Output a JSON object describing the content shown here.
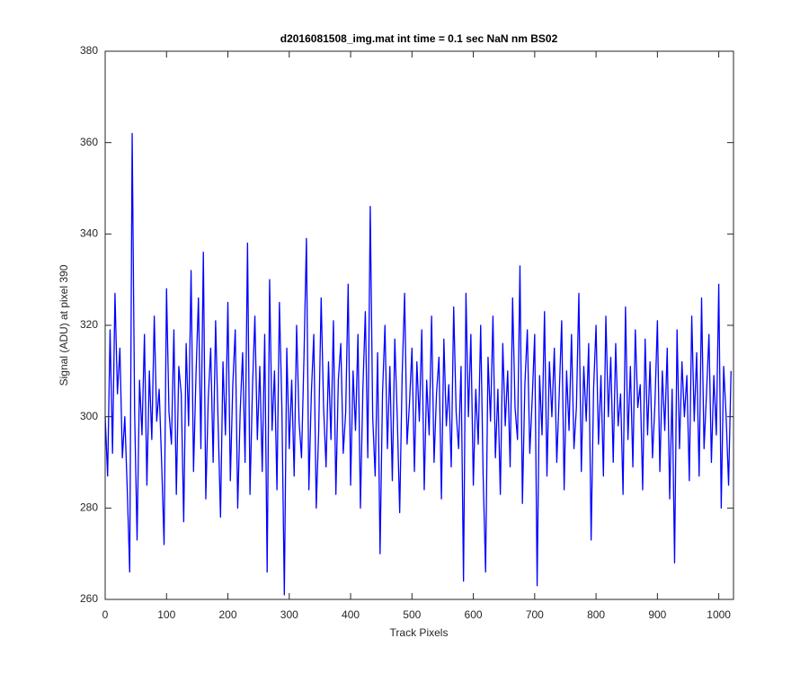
{
  "chart_data": {
    "type": "line",
    "title": "d2016081508_img.mat int time = 0.1 sec  NaN nm BS02",
    "xlabel": "Track Pixels",
    "ylabel": "Signal (ADU) at pixel 390",
    "color": "#0000ff",
    "xlim": [
      0,
      1024
    ],
    "ylim": [
      260,
      380
    ],
    "xticks": [
      0,
      100,
      200,
      300,
      400,
      500,
      600,
      700,
      800,
      900,
      1000
    ],
    "yticks": [
      260,
      280,
      300,
      320,
      340,
      360,
      380
    ],
    "x": [
      0,
      4,
      8,
      12,
      16,
      20,
      24,
      28,
      32,
      36,
      40,
      44,
      48,
      52,
      56,
      60,
      64,
      68,
      72,
      76,
      80,
      84,
      88,
      92,
      96,
      100,
      104,
      108,
      112,
      116,
      120,
      124,
      128,
      132,
      136,
      140,
      144,
      148,
      152,
      156,
      160,
      164,
      168,
      172,
      176,
      180,
      184,
      188,
      192,
      196,
      200,
      204,
      208,
      212,
      216,
      220,
      224,
      228,
      232,
      236,
      240,
      244,
      248,
      252,
      256,
      260,
      264,
      268,
      272,
      276,
      280,
      284,
      288,
      292,
      296,
      300,
      304,
      308,
      312,
      316,
      320,
      324,
      328,
      332,
      336,
      340,
      344,
      348,
      352,
      356,
      360,
      364,
      368,
      372,
      376,
      380,
      384,
      388,
      392,
      396,
      400,
      404,
      408,
      412,
      416,
      420,
      424,
      428,
      432,
      436,
      440,
      444,
      448,
      452,
      456,
      460,
      464,
      468,
      472,
      476,
      480,
      484,
      488,
      492,
      496,
      500,
      504,
      508,
      512,
      516,
      520,
      524,
      528,
      532,
      536,
      540,
      544,
      548,
      552,
      556,
      560,
      564,
      568,
      572,
      576,
      580,
      584,
      588,
      592,
      596,
      600,
      604,
      608,
      612,
      616,
      620,
      624,
      628,
      632,
      636,
      640,
      644,
      648,
      652,
      656,
      660,
      664,
      668,
      672,
      676,
      680,
      684,
      688,
      692,
      696,
      700,
      704,
      708,
      712,
      716,
      720,
      724,
      728,
      732,
      736,
      740,
      744,
      748,
      752,
      756,
      760,
      764,
      768,
      772,
      776,
      780,
      784,
      788,
      792,
      796,
      800,
      804,
      808,
      812,
      816,
      820,
      824,
      828,
      832,
      836,
      840,
      844,
      848,
      852,
      856,
      860,
      864,
      868,
      872,
      876,
      880,
      884,
      888,
      892,
      896,
      900,
      904,
      908,
      912,
      916,
      920,
      924,
      928,
      932,
      936,
      940,
      944,
      948,
      952,
      956,
      960,
      964,
      968,
      972,
      976,
      980,
      984,
      988,
      992,
      996,
      1000,
      1004,
      1008,
      1012,
      1016,
      1020
    ],
    "values": [
      300,
      287,
      319,
      292,
      327,
      305,
      315,
      291,
      300,
      284,
      266,
      362,
      301,
      273,
      308,
      296,
      318,
      285,
      310,
      295,
      322,
      299,
      306,
      290,
      272,
      328,
      301,
      294,
      319,
      283,
      311,
      305,
      277,
      316,
      298,
      332,
      288,
      309,
      326,
      293,
      336,
      282,
      304,
      315,
      290,
      321,
      299,
      278,
      312,
      296,
      325,
      286,
      307,
      319,
      280,
      301,
      314,
      290,
      338,
      283,
      306,
      322,
      295,
      311,
      288,
      318,
      266,
      330,
      297,
      310,
      284,
      325,
      302,
      261,
      315,
      293,
      308,
      287,
      320,
      299,
      291,
      313,
      339,
      284,
      305,
      318,
      280,
      297,
      326,
      302,
      289,
      312,
      295,
      321,
      283,
      308,
      316,
      292,
      301,
      329,
      285,
      310,
      297,
      318,
      280,
      306,
      323,
      291,
      346,
      300,
      287,
      314,
      270,
      305,
      320,
      293,
      311,
      286,
      317,
      300,
      279,
      309,
      327,
      294,
      303,
      315,
      288,
      312,
      299,
      319,
      284,
      308,
      296,
      322,
      290,
      305,
      313,
      282,
      317,
      298,
      307,
      289,
      324,
      301,
      293,
      311,
      264,
      327,
      300,
      318,
      285,
      306,
      294,
      320,
      287,
      266,
      313,
      299,
      322,
      291,
      306,
      283,
      316,
      298,
      310,
      289,
      326,
      302,
      295,
      333,
      281,
      307,
      319,
      292,
      304,
      318,
      263,
      309,
      296,
      323,
      287,
      312,
      300,
      315,
      290,
      305,
      321,
      284,
      310,
      297,
      318,
      293,
      302,
      327,
      288,
      311,
      299,
      316,
      273,
      306,
      320,
      294,
      309,
      287,
      322,
      300,
      313,
      290,
      316,
      298,
      305,
      283,
      324,
      295,
      311,
      289,
      319,
      302,
      307,
      284,
      317,
      296,
      312,
      291,
      303,
      321,
      288,
      310,
      297,
      315,
      282,
      306,
      268,
      319,
      293,
      312,
      300,
      309,
      286,
      322,
      299,
      314,
      287,
      326,
      293,
      305,
      318,
      290,
      309,
      296,
      329,
      280,
      311,
      300,
      285,
      310
    ]
  }
}
